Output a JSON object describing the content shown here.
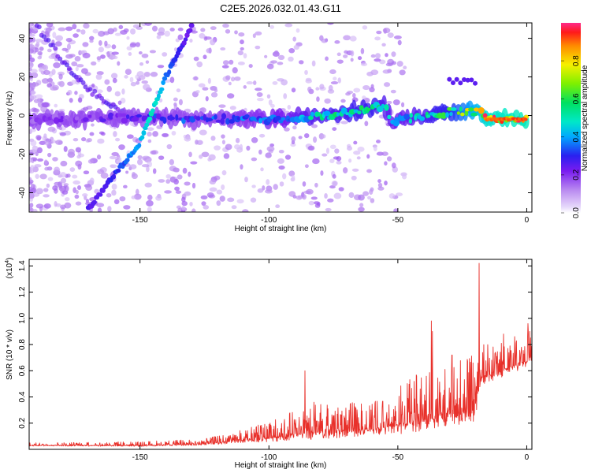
{
  "title": "C2E5.2026.032.01.43.G11",
  "colors": {
    "axis": "#000000",
    "snr_line": "#e8302a",
    "background": "#ffffff"
  },
  "chart_data": [
    {
      "type": "heatmap",
      "name": "spectrogram",
      "xlabel": "Height of straight line (km)",
      "ylabel": "Frequency (Hz)",
      "xlim": [
        -193,
        2
      ],
      "ylim": [
        -50,
        48
      ],
      "xticks": [
        -150,
        -100,
        -50,
        0
      ],
      "yticks": [
        -40,
        -20,
        0,
        20,
        40
      ],
      "colorbar": {
        "label": "Normalized spectral amplitude",
        "range": [
          0,
          1
        ],
        "ticks": [
          "0.0",
          "0.2",
          "0.4",
          "0.6",
          "0.8"
        ],
        "tick_values": [
          0,
          0.2,
          0.4,
          0.6,
          0.8
        ]
      },
      "features": {
        "carrier_band": {
          "freq_hz": 0,
          "height_range_km": [
            -193,
            0
          ],
          "amplitude_profile": [
            {
              "height_km": -190,
              "amp": 0.18
            },
            {
              "height_km": -160,
              "amp": 0.22
            },
            {
              "height_km": -140,
              "amp": 0.3
            },
            {
              "height_km": -120,
              "amp": 0.32
            },
            {
              "height_km": -100,
              "amp": 0.38
            },
            {
              "height_km": -80,
              "amp": 0.48
            },
            {
              "height_km": -60,
              "amp": 0.52
            },
            {
              "height_km": -50,
              "amp": 0.42
            },
            {
              "height_km": -30,
              "amp": 0.55
            },
            {
              "height_km": -15,
              "amp": 0.85
            },
            {
              "height_km": 0,
              "amp": 0.9
            }
          ],
          "drift": [
            {
              "height_km": -190,
              "freq_hz": -2
            },
            {
              "height_km": -150,
              "freq_hz": -1
            },
            {
              "height_km": -100,
              "freq_hz": -2
            },
            {
              "height_km": -75,
              "freq_hz": 0
            },
            {
              "height_km": -55,
              "freq_hz": 5
            },
            {
              "height_km": -52,
              "freq_hz": -3
            },
            {
              "height_km": -30,
              "freq_hz": 2
            },
            {
              "height_km": -20,
              "freq_hz": 2
            },
            {
              "height_km": -10,
              "freq_hz": -2
            },
            {
              "height_km": 0,
              "freq_hz": -2
            }
          ]
        },
        "diagonal_streak": {
          "points": [
            [
              -170,
              -48
            ],
            [
              -150,
              -14
            ],
            [
              -140,
              20
            ],
            [
              -130,
              46
            ]
          ]
        },
        "faint_streak": {
          "points": [
            [
              -190,
              46
            ],
            [
              -175,
              20
            ],
            [
              -165,
              8
            ],
            [
              -155,
              0
            ]
          ]
        },
        "sideband_patch": {
          "height_range_km": [
            -30,
            -20
          ],
          "freq_hz": 18
        }
      }
    },
    {
      "type": "line",
      "name": "snr",
      "xlabel": "Height of straight line (km)",
      "ylabel": "SNR (10 * v/v)",
      "scale_label": "(x10",
      "scale_exp": "4",
      "scale_close": ")",
      "xlim": [
        -193,
        2
      ],
      "ylim": [
        0,
        1.45
      ],
      "xticks": [
        -150,
        -100,
        -50,
        0
      ],
      "yticks": [
        "0.2",
        "0.4",
        "0.6",
        "0.8",
        "1.0",
        "1.2",
        "1.4"
      ],
      "ytick_values": [
        0.2,
        0.4,
        0.6,
        0.8,
        1.0,
        1.2,
        1.4
      ],
      "series": [
        {
          "name": "SNR",
          "envelope": [
            {
              "x": -193,
              "base": 0.03,
              "amp": 0.02
            },
            {
              "x": -150,
              "base": 0.03,
              "amp": 0.03
            },
            {
              "x": -125,
              "base": 0.04,
              "amp": 0.04
            },
            {
              "x": -110,
              "base": 0.07,
              "amp": 0.08
            },
            {
              "x": -95,
              "base": 0.1,
              "amp": 0.15
            },
            {
              "x": -80,
              "base": 0.14,
              "amp": 0.25
            },
            {
              "x": -65,
              "base": 0.15,
              "amp": 0.2
            },
            {
              "x": -55,
              "base": 0.17,
              "amp": 0.22
            },
            {
              "x": -47,
              "base": 0.2,
              "amp": 0.32
            },
            {
              "x": -38,
              "base": 0.25,
              "amp": 0.4
            },
            {
              "x": -30,
              "base": 0.28,
              "amp": 0.4
            },
            {
              "x": -20,
              "base": 0.3,
              "amp": 0.42
            },
            {
              "x": -18,
              "base": 0.55,
              "amp": 0.25
            },
            {
              "x": -10,
              "base": 0.6,
              "amp": 0.22
            },
            {
              "x": 0,
              "base": 0.68,
              "amp": 0.22
            },
            {
              "x": 2,
              "base": 0.72,
              "amp": 0.2
            }
          ],
          "peaks": [
            {
              "x": -18.5,
              "y": 1.42
            },
            {
              "x": -37,
              "y": 0.98
            },
            {
              "x": -36.6,
              "y": 0.9
            },
            {
              "x": -86,
              "y": 0.6
            },
            {
              "x": -29,
              "y": 0.72
            },
            {
              "x": -9,
              "y": 0.88
            },
            {
              "x": 0.5,
              "y": 0.96
            }
          ]
        }
      ]
    }
  ]
}
